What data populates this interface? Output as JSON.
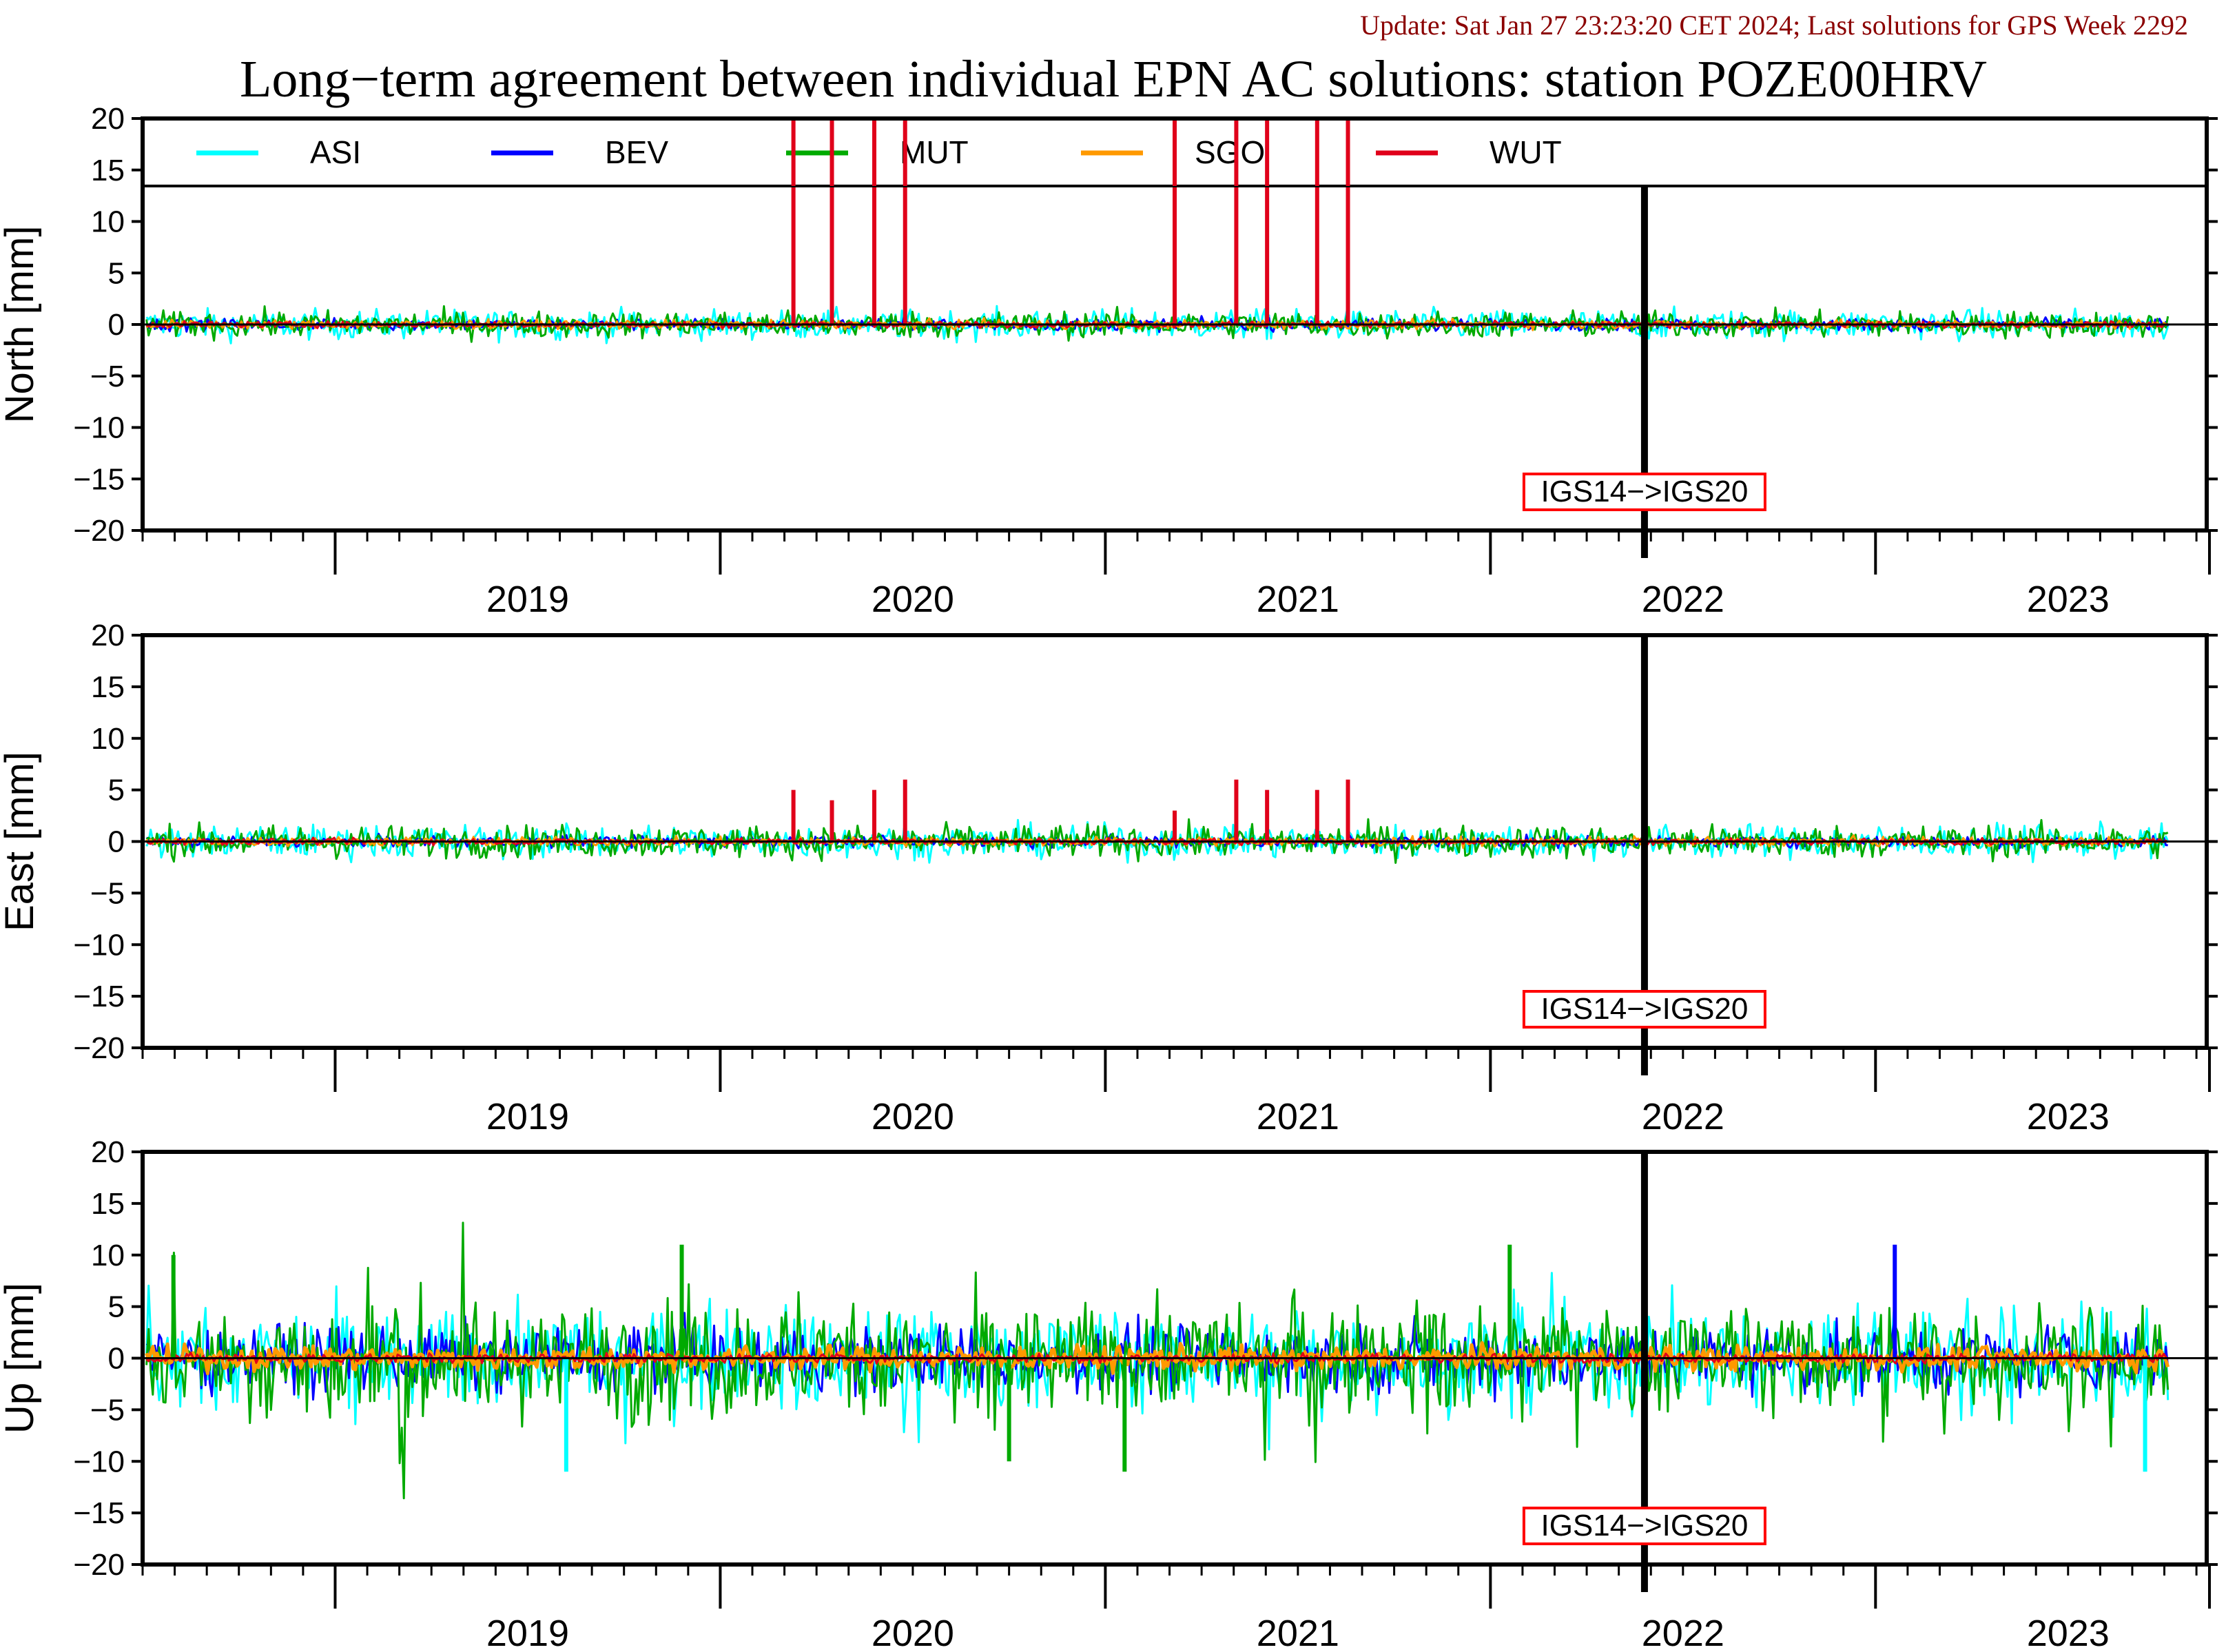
{
  "update_text": "Update: Sat Jan 27 23:23:20 CET 2024; Last solutions for GPS Week 2292",
  "title": "Long−term agreement between individual EPN AC solutions: station POZE00HRV",
  "colors": {
    "ASI": "#00ffff",
    "BEV": "#0000ff",
    "MUT": "#00aa00",
    "SGO": "#ff9900",
    "WUT": "#e0001a",
    "update_text": "#8b0000",
    "marker_box": "#ff0000",
    "axis": "#000000"
  },
  "chart_data": [
    {
      "type": "line",
      "panel": "north",
      "ylabel": "North [mm]",
      "ylim": [
        -20,
        20
      ],
      "yticks": [
        "20",
        "15",
        "10",
        "5",
        "0",
        "−5",
        "−10",
        "−15",
        "−20"
      ],
      "xlim": [
        2018.5,
        2023.86
      ],
      "year_labels": [
        "2019",
        "2020",
        "2021",
        "2022",
        "2023"
      ],
      "legend": [
        "ASI",
        "BEV",
        "MUT",
        "SGO",
        "WUT"
      ],
      "legend_position": "top",
      "reference_line": 0,
      "event": {
        "x": 2022.4,
        "label": "IGS14−>IGS20"
      },
      "series_amplitude_mm": {
        "ASI": 1.0,
        "BEV": 0.4,
        "MUT": 0.9,
        "SGO": 0.3,
        "WUT": 0.2
      },
      "spikes": [
        {
          "series": "WUT",
          "x": 2020.19,
          "y": 20
        },
        {
          "series": "WUT",
          "x": 2020.29,
          "y": 20
        },
        {
          "series": "WUT",
          "x": 2020.4,
          "y": 20
        },
        {
          "series": "WUT",
          "x": 2020.48,
          "y": 20
        },
        {
          "series": "WUT",
          "x": 2021.18,
          "y": 20
        },
        {
          "series": "WUT",
          "x": 2021.34,
          "y": 20
        },
        {
          "series": "WUT",
          "x": 2021.42,
          "y": 20
        },
        {
          "series": "WUT",
          "x": 2021.55,
          "y": 20
        },
        {
          "series": "WUT",
          "x": 2021.63,
          "y": 20
        }
      ]
    },
    {
      "type": "line",
      "panel": "east",
      "ylabel": "East [mm]",
      "ylim": [
        -20,
        20
      ],
      "yticks": [
        "20",
        "15",
        "10",
        "5",
        "0",
        "−5",
        "−10",
        "−15",
        "−20"
      ],
      "xlim": [
        2018.5,
        2023.86
      ],
      "year_labels": [
        "2019",
        "2020",
        "2021",
        "2022",
        "2023"
      ],
      "reference_line": 0,
      "event": {
        "x": 2022.4,
        "label": "IGS14−>IGS20"
      },
      "series_amplitude_mm": {
        "ASI": 1.1,
        "BEV": 0.4,
        "MUT": 1.1,
        "SGO": 0.3,
        "WUT": 0.2
      },
      "spikes": [
        {
          "series": "WUT",
          "x": 2020.19,
          "y": 5
        },
        {
          "series": "WUT",
          "x": 2020.29,
          "y": 4
        },
        {
          "series": "WUT",
          "x": 2020.4,
          "y": 5
        },
        {
          "series": "WUT",
          "x": 2020.48,
          "y": 6
        },
        {
          "series": "WUT",
          "x": 2021.18,
          "y": 3
        },
        {
          "series": "WUT",
          "x": 2021.34,
          "y": 6
        },
        {
          "series": "WUT",
          "x": 2021.42,
          "y": 5
        },
        {
          "series": "WUT",
          "x": 2021.55,
          "y": 5
        },
        {
          "series": "WUT",
          "x": 2021.63,
          "y": 6
        }
      ]
    },
    {
      "type": "line",
      "panel": "up",
      "ylabel": "Up [mm]",
      "ylim": [
        -20,
        20
      ],
      "yticks": [
        "20",
        "15",
        "10",
        "5",
        "0",
        "−5",
        "−10",
        "−15",
        "−20"
      ],
      "xlim": [
        2018.5,
        2023.86
      ],
      "year_labels": [
        "2019",
        "2020",
        "2021",
        "2022",
        "2023"
      ],
      "reference_line": 0,
      "event": {
        "x": 2022.4,
        "label": "IGS14−>IGS20"
      },
      "series_amplitude_mm": {
        "ASI": 3.5,
        "BEV": 2.2,
        "MUT": 3.8,
        "SGO": 0.8,
        "WUT": 0.3
      },
      "spikes": [
        {
          "series": "MUT",
          "x": 2018.58,
          "y": 10
        },
        {
          "series": "MUT",
          "x": 2019.9,
          "y": 11
        },
        {
          "series": "MUT",
          "x": 2020.75,
          "y": -10
        },
        {
          "series": "MUT",
          "x": 2021.05,
          "y": -11
        },
        {
          "series": "MUT",
          "x": 2022.05,
          "y": 11
        },
        {
          "series": "ASI",
          "x": 2019.6,
          "y": -11
        },
        {
          "series": "ASI",
          "x": 2023.7,
          "y": -11
        },
        {
          "series": "BEV",
          "x": 2023.05,
          "y": 11
        }
      ]
    }
  ]
}
